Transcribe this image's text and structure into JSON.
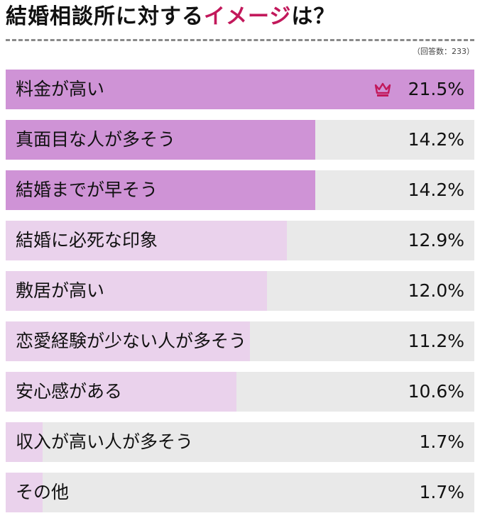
{
  "header": {
    "title_main": "結婚相談所に対する",
    "title_accent": "イメージ",
    "title_end": "は？",
    "respondents": "（回答数：233）"
  },
  "colors": {
    "accent": "#c2185b",
    "bar_top": "#cf93d6",
    "bar_other": "#ead2ec",
    "track": "#e9e9e9"
  },
  "icons": {
    "top_marker": "crown-icon"
  },
  "chart_data": {
    "type": "bar",
    "orientation": "horizontal",
    "categories": [
      "料金が高い",
      "真面目な人が多そう",
      "結婚までが早そう",
      "結婚に必死な印象",
      "敷居が高い",
      "恋愛経験が少ない人が多そう",
      "安心感がある",
      "収入が高い人が多そう",
      "その他"
    ],
    "values": [
      21.5,
      14.2,
      14.2,
      12.9,
      12.0,
      11.2,
      10.6,
      1.7,
      1.7
    ],
    "value_labels": [
      "21.5%",
      "14.2%",
      "14.2%",
      "12.9%",
      "12.0%",
      "11.2%",
      "10.6%",
      "1.7%",
      "1.7%"
    ],
    "xlim": [
      0,
      21.5
    ],
    "highlighted_count": 3,
    "grid": false,
    "legend": "none"
  }
}
